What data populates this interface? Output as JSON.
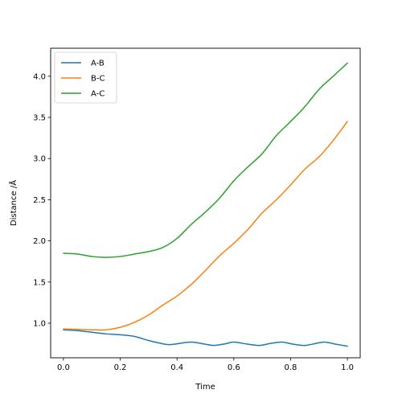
{
  "chart_data": {
    "type": "line",
    "title": "",
    "xlabel": "Time",
    "ylabel": "Distance /Å",
    "xlim": [
      -0.045,
      1.045
    ],
    "ylim": [
      0.58,
      4.34
    ],
    "xticks": [
      0.0,
      0.2,
      0.4,
      0.6,
      0.8,
      1.0
    ],
    "xtick_labels": [
      "0.0",
      "0.2",
      "0.4",
      "0.6",
      "0.8",
      "1.0"
    ],
    "yticks": [
      1.0,
      1.5,
      2.0,
      2.5,
      3.0,
      3.5,
      4.0
    ],
    "ytick_labels": [
      "1.0",
      "1.5",
      "2.0",
      "2.5",
      "3.0",
      "3.5",
      "4.0"
    ],
    "grid": false,
    "legend_position": "top-left",
    "series": [
      {
        "name": "A-B",
        "color": "#1f77b4",
        "x": [
          0.0,
          0.05,
          0.1,
          0.15,
          0.2,
          0.25,
          0.3,
          0.35,
          0.375,
          0.4,
          0.45,
          0.5,
          0.53,
          0.57,
          0.6,
          0.65,
          0.69,
          0.73,
          0.77,
          0.81,
          0.85,
          0.89,
          0.92,
          0.96,
          1.0
        ],
        "y": [
          0.92,
          0.91,
          0.89,
          0.87,
          0.86,
          0.84,
          0.79,
          0.75,
          0.74,
          0.75,
          0.77,
          0.745,
          0.73,
          0.75,
          0.77,
          0.745,
          0.73,
          0.755,
          0.77,
          0.745,
          0.73,
          0.755,
          0.77,
          0.745,
          0.72
        ]
      },
      {
        "name": "B-C",
        "color": "#ff7f0e",
        "x": [
          0.0,
          0.05,
          0.1,
          0.15,
          0.2,
          0.25,
          0.3,
          0.35,
          0.4,
          0.45,
          0.5,
          0.55,
          0.6,
          0.65,
          0.7,
          0.75,
          0.8,
          0.85,
          0.9,
          0.95,
          1.0
        ],
        "y": [
          0.93,
          0.925,
          0.92,
          0.92,
          0.95,
          1.01,
          1.1,
          1.22,
          1.33,
          1.47,
          1.64,
          1.82,
          1.97,
          2.14,
          2.34,
          2.5,
          2.68,
          2.87,
          3.02,
          3.22,
          3.45
        ]
      },
      {
        "name": "A-C",
        "color": "#2ca02c",
        "x": [
          0.0,
          0.05,
          0.1,
          0.15,
          0.2,
          0.25,
          0.3,
          0.35,
          0.4,
          0.45,
          0.5,
          0.55,
          0.6,
          0.65,
          0.7,
          0.75,
          0.8,
          0.85,
          0.9,
          0.95,
          1.0
        ],
        "y": [
          1.85,
          1.84,
          1.81,
          1.8,
          1.81,
          1.84,
          1.87,
          1.92,
          2.03,
          2.2,
          2.35,
          2.52,
          2.73,
          2.9,
          3.06,
          3.28,
          3.45,
          3.63,
          3.84,
          4.0,
          4.16
        ]
      }
    ]
  }
}
